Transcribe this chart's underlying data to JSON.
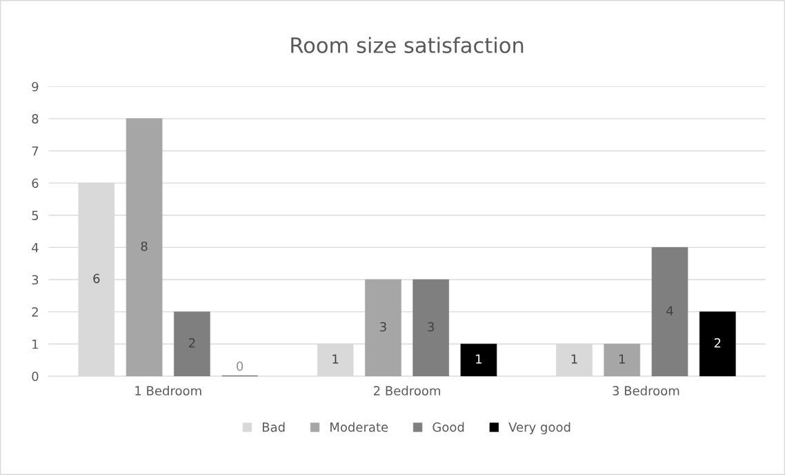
{
  "chart_data": {
    "type": "bar",
    "title": "Room size satisfaction",
    "categories": [
      "1 Bedroom",
      "2 Bedroom",
      "3 Bedroom"
    ],
    "series": [
      {
        "name": "Bad",
        "color": "#d9d9d9",
        "values": [
          6,
          1,
          1
        ]
      },
      {
        "name": "Moderate",
        "color": "#a6a6a6",
        "values": [
          8,
          3,
          1
        ]
      },
      {
        "name": "Good",
        "color": "#7f7f7f",
        "values": [
          2,
          3,
          4
        ]
      },
      {
        "name": "Very good",
        "color": "#000000",
        "values": [
          0,
          1,
          2
        ]
      }
    ],
    "ylim": [
      0,
      9
    ],
    "yticks": [
      0,
      1,
      2,
      3,
      4,
      5,
      6,
      7,
      8,
      9
    ],
    "grid": "y",
    "legend": "bottom",
    "data_labels": true
  }
}
